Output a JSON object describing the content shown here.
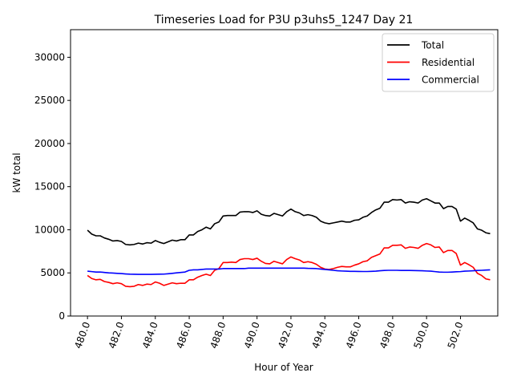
{
  "chart_data": {
    "type": "line",
    "title": "Timeseries Load for P3U p3uhs5_1247  Day 21",
    "xlabel": "Hour of Year",
    "ylabel": "kW total",
    "xlim": [
      479.0,
      504.2
    ],
    "ylim": [
      0,
      33200
    ],
    "x_ticks": [
      480.0,
      482.0,
      484.0,
      486.0,
      488.0,
      490.0,
      492.0,
      494.0,
      496.0,
      498.0,
      500.0,
      502.0
    ],
    "x_tick_labels": [
      "480.0",
      "482.0",
      "484.0",
      "486.0",
      "488.0",
      "490.0",
      "492.0",
      "494.0",
      "496.0",
      "498.0",
      "500.0",
      "502.0"
    ],
    "y_ticks": [
      0,
      5000,
      10000,
      15000,
      20000,
      25000,
      30000
    ],
    "y_tick_labels": [
      "0",
      "5000",
      "10000",
      "15000",
      "20000",
      "25000",
      "30000"
    ],
    "legend_position": "top-right",
    "grid": false,
    "x_start": 480.0,
    "x_step": 0.25,
    "series": [
      {
        "name": "Total",
        "color": "#000000",
        "values": [
          9950,
          9500,
          9300,
          9300,
          9050,
          8900,
          8700,
          8750,
          8650,
          8300,
          8250,
          8300,
          8450,
          8350,
          8500,
          8450,
          8750,
          8550,
          8400,
          8600,
          8800,
          8700,
          8850,
          8850,
          9400,
          9400,
          9800,
          10000,
          10300,
          10100,
          10700,
          10900,
          11600,
          11650,
          11650,
          11650,
          12050,
          12100,
          12100,
          12000,
          12200,
          11800,
          11650,
          11600,
          11900,
          11750,
          11600,
          12100,
          12400,
          12100,
          11950,
          11650,
          11750,
          11650,
          11450,
          11000,
          10800,
          10700,
          10800,
          10900,
          11000,
          10900,
          10900,
          11100,
          11150,
          11450,
          11600,
          12000,
          12300,
          12500,
          13200,
          13200,
          13500,
          13450,
          13500,
          13100,
          13250,
          13200,
          13100,
          13450,
          13600,
          13350,
          13100,
          13100,
          12450,
          12700,
          12700,
          12400,
          11000,
          11350,
          11100,
          10800,
          10100,
          9950,
          9650,
          9550
        ]
      },
      {
        "name": "Residential",
        "color": "#ff0000",
        "values": [
          4700,
          4350,
          4200,
          4250,
          4000,
          3900,
          3750,
          3850,
          3750,
          3450,
          3400,
          3450,
          3650,
          3550,
          3700,
          3650,
          3950,
          3800,
          3550,
          3700,
          3850,
          3750,
          3800,
          3800,
          4200,
          4200,
          4500,
          4700,
          4850,
          4700,
          5300,
          5500,
          6200,
          6200,
          6250,
          6200,
          6550,
          6650,
          6650,
          6550,
          6700,
          6350,
          6100,
          6050,
          6350,
          6200,
          6050,
          6550,
          6850,
          6650,
          6500,
          6200,
          6300,
          6200,
          6000,
          5650,
          5450,
          5400,
          5500,
          5650,
          5750,
          5700,
          5700,
          5900,
          6050,
          6300,
          6400,
          6800,
          7000,
          7200,
          7900,
          7900,
          8200,
          8200,
          8250,
          7850,
          8000,
          7950,
          7850,
          8200,
          8400,
          8250,
          7950,
          8000,
          7350,
          7600,
          7600,
          7250,
          5900,
          6200,
          5950,
          5650,
          4950,
          4700,
          4300,
          4200
        ]
      },
      {
        "name": "Commercial",
        "color": "#0000ff",
        "values": [
          5200,
          5150,
          5100,
          5100,
          5050,
          5000,
          4980,
          4950,
          4920,
          4880,
          4850,
          4840,
          4830,
          4830,
          4830,
          4830,
          4840,
          4850,
          4860,
          4900,
          4950,
          5000,
          5050,
          5100,
          5300,
          5350,
          5350,
          5400,
          5450,
          5450,
          5450,
          5450,
          5500,
          5500,
          5500,
          5500,
          5500,
          5500,
          5550,
          5550,
          5550,
          5550,
          5550,
          5550,
          5550,
          5550,
          5550,
          5550,
          5550,
          5550,
          5550,
          5550,
          5530,
          5520,
          5500,
          5450,
          5400,
          5350,
          5300,
          5250,
          5220,
          5200,
          5180,
          5180,
          5170,
          5160,
          5160,
          5180,
          5200,
          5250,
          5280,
          5300,
          5300,
          5300,
          5280,
          5280,
          5280,
          5270,
          5260,
          5250,
          5220,
          5200,
          5150,
          5100,
          5080,
          5080,
          5100,
          5130,
          5150,
          5200,
          5220,
          5250,
          5280,
          5300,
          5330,
          5350
        ]
      }
    ]
  }
}
